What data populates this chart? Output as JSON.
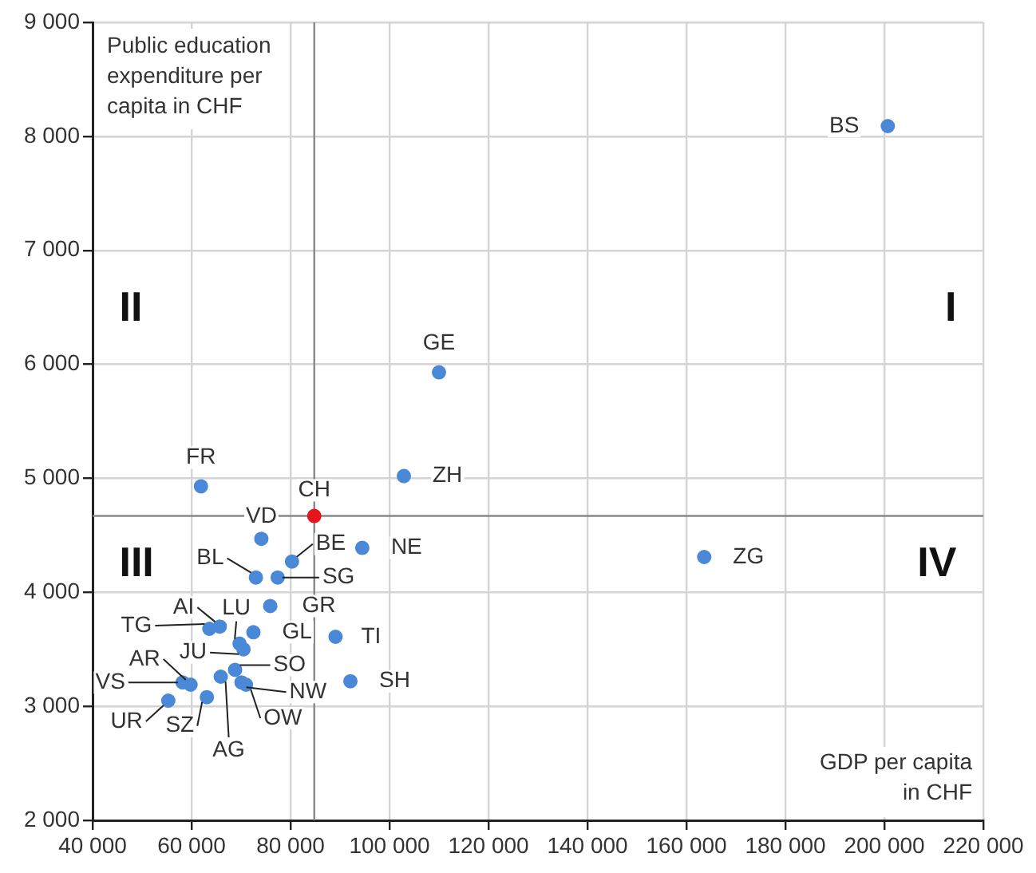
{
  "chart_data": {
    "type": "scatter",
    "xlabel": "GDP per capita in CHF",
    "ylabel": "Public education expenditure per capita in CHF",
    "x": [
      200700,
      110000,
      102900,
      61900,
      84800,
      74100,
      163600,
      94500,
      80300,
      73000,
      77400,
      75900,
      65700,
      63600,
      69700,
      70500,
      72500,
      89100,
      92100,
      68800,
      70100,
      71000,
      65900,
      59800,
      58200,
      63100,
      55300
    ],
    "values": [
      8090,
      5930,
      5020,
      4930,
      4670,
      4470,
      4310,
      4390,
      4270,
      4130,
      4130,
      3880,
      3700,
      3680,
      3550,
      3500,
      3650,
      3610,
      3220,
      3320,
      3210,
      3190,
      3260,
      3190,
      3210,
      3080,
      3050
    ],
    "colors": [
      "#4a88d8",
      "#4a88d8",
      "#4a88d8",
      "#4a88d8",
      "#e8141c",
      "#4a88d8",
      "#4a88d8",
      "#4a88d8",
      "#4a88d8",
      "#4a88d8",
      "#4a88d8",
      "#4a88d8",
      "#4a88d8",
      "#4a88d8",
      "#4a88d8",
      "#4a88d8",
      "#4a88d8",
      "#4a88d8",
      "#4a88d8",
      "#4a88d8",
      "#4a88d8",
      "#4a88d8",
      "#4a88d8",
      "#4a88d8",
      "#4a88d8",
      "#4a88d8",
      "#4a88d8"
    ],
    "marker": "circle",
    "grid": true,
    "xlim": [
      40000,
      220000
    ],
    "ylim": [
      2000,
      9000
    ],
    "xticks": [
      {
        "value": 40000,
        "label": "40 000"
      },
      {
        "value": 60000,
        "label": "60 000"
      },
      {
        "value": 80000,
        "label": "80 000"
      },
      {
        "value": 100000,
        "label": "100 000"
      },
      {
        "value": 120000,
        "label": "120 000"
      },
      {
        "value": 140000,
        "label": "140 000"
      },
      {
        "value": 160000,
        "label": "160 000"
      },
      {
        "value": 180000,
        "label": "180 000"
      },
      {
        "value": 200000,
        "label": "200 000"
      },
      {
        "value": 220000,
        "label": "220 000"
      }
    ],
    "yticks": [
      {
        "value": 2000,
        "label": "2 000"
      },
      {
        "value": 3000,
        "label": "3 000"
      },
      {
        "value": 4000,
        "label": "4 000"
      },
      {
        "value": 5000,
        "label": "5 000"
      },
      {
        "value": 6000,
        "label": "6 000"
      },
      {
        "value": 7000,
        "label": "7 000"
      },
      {
        "value": 8000,
        "label": "8 000"
      },
      {
        "value": 9000,
        "label": "9 000"
      }
    ],
    "ref_lines": [
      {
        "axis": "x",
        "value": 84800,
        "color": "#888888"
      },
      {
        "axis": "y",
        "value": 4670,
        "color": "#888888"
      }
    ],
    "annotations": [
      "II",
      "I",
      "III",
      "IV",
      {
        "text": "BS",
        "x": 200700,
        "y": 8090
      },
      {
        "text": "GE",
        "x": 110000,
        "y": 5930
      },
      {
        "text": "ZH",
        "x": 102900,
        "y": 5020
      },
      {
        "text": "FR",
        "x": 61900,
        "y": 4930
      },
      {
        "text": "CH",
        "x": 84800,
        "y": 4670
      },
      {
        "text": "VD",
        "x": 74100,
        "y": 4470
      },
      {
        "text": "ZG",
        "x": 163600,
        "y": 4310
      },
      {
        "text": "NE",
        "x": 94500,
        "y": 4390
      },
      {
        "text": "BE",
        "x": 80300,
        "y": 4270
      },
      {
        "text": "BL",
        "x": 73000,
        "y": 4130
      },
      {
        "text": "SG",
        "x": 77400,
        "y": 4130
      },
      {
        "text": "GR",
        "x": 75900,
        "y": 3880
      },
      {
        "text": "AI",
        "x": 65700,
        "y": 3700
      },
      {
        "text": "TG",
        "x": 63600,
        "y": 3680
      },
      {
        "text": "LU",
        "x": 69700,
        "y": 3550
      },
      {
        "text": "JU",
        "x": 70500,
        "y": 3500
      },
      {
        "text": "GL",
        "x": 72500,
        "y": 3650
      },
      {
        "text": "TI",
        "x": 89100,
        "y": 3610
      },
      {
        "text": "SH",
        "x": 92100,
        "y": 3220
      },
      {
        "text": "SO",
        "x": 68800,
        "y": 3320
      },
      {
        "text": "NW",
        "x": 70100,
        "y": 3210
      },
      {
        "text": "OW",
        "x": 71000,
        "y": 3190
      },
      {
        "text": "AG",
        "x": 65900,
        "y": 3260
      },
      {
        "text": "AR",
        "x": 59800,
        "y": 3190
      },
      {
        "text": "VS",
        "x": 58200,
        "y": 3210
      },
      {
        "text": "SZ",
        "x": 63100,
        "y": 3080
      },
      {
        "text": "UR",
        "x": 55300,
        "y": 3050
      }
    ]
  }
}
